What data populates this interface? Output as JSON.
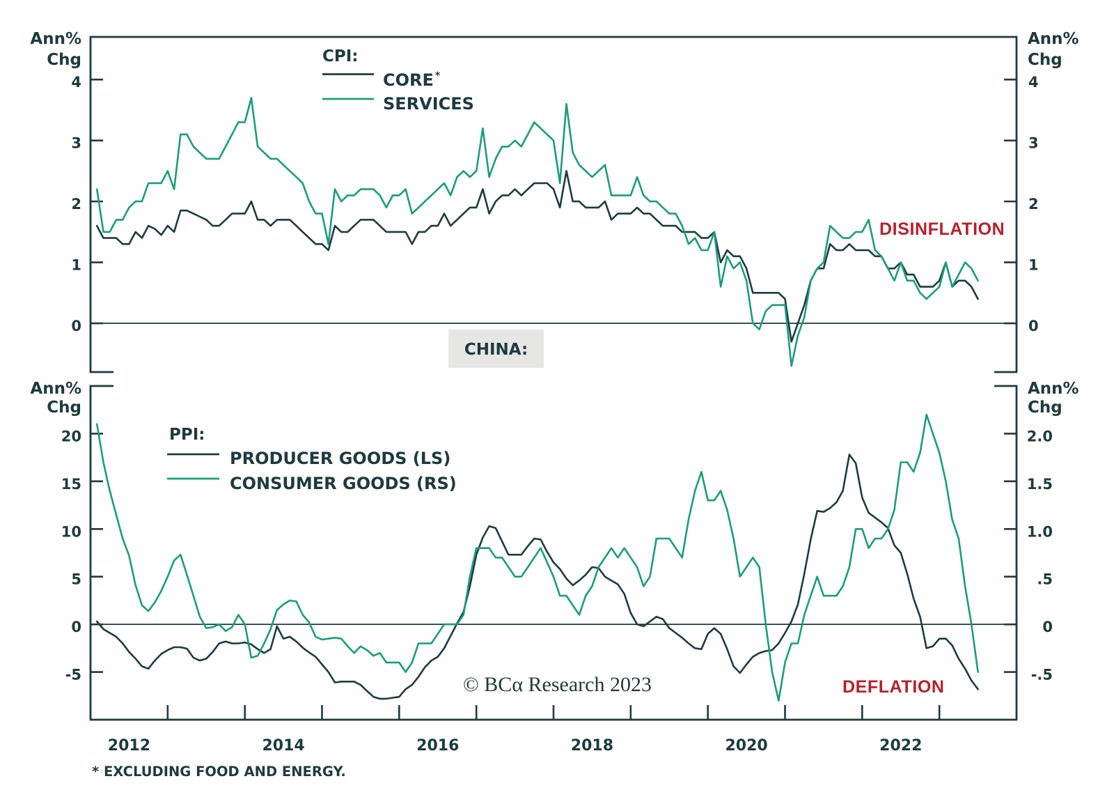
{
  "panel_label": "CHINA:",
  "copyright": "© BCα Research 2023",
  "footnote": "* EXCLUDING FOOD AND ENERGY.",
  "x_axis": {
    "range": [
      2012,
      2024
    ],
    "start": "2012-01",
    "frequency": "monthly",
    "tick_labels": [
      "2012",
      "2014",
      "2016",
      "2018",
      "2020",
      "2022"
    ]
  },
  "chart_data": [
    {
      "type": "line",
      "panel": "top",
      "title": "CHINA:",
      "legend_title": "CPI:",
      "legend_position": "top-left",
      "grid": false,
      "xlabel": "",
      "y_axis_left": {
        "title": [
          "Ann%",
          "Chg"
        ],
        "range": [
          -0.8,
          4.7
        ],
        "ticks": [
          0,
          1,
          2,
          3,
          4
        ],
        "tick_labels": [
          "0",
          "1",
          "2",
          "3",
          "4"
        ]
      },
      "y_axis_right": {
        "title": [
          "Ann%",
          "Chg"
        ],
        "range": [
          -0.8,
          4.7
        ],
        "ticks": [
          0,
          1,
          2,
          3,
          4
        ],
        "tick_labels": [
          "0",
          "1",
          "2",
          "3",
          "4"
        ]
      },
      "annotations": [
        {
          "text": "DISINFLATION",
          "color": "#b8202b",
          "position": "right"
        }
      ],
      "series": [
        {
          "id": "core",
          "name": "CORE",
          "footnote_marker": "*",
          "axis": "left",
          "color": "#1c3b40",
          "values": [
            1.6,
            1.4,
            1.4,
            1.4,
            1.3,
            1.3,
            1.5,
            1.4,
            1.6,
            1.55,
            1.45,
            1.6,
            1.5,
            1.85,
            1.85,
            1.8,
            1.75,
            1.7,
            1.6,
            1.6,
            1.7,
            1.8,
            1.8,
            1.8,
            2.0,
            1.7,
            1.7,
            1.6,
            1.7,
            1.7,
            1.7,
            1.6,
            1.5,
            1.4,
            1.3,
            1.3,
            1.2,
            1.6,
            1.5,
            1.5,
            1.6,
            1.7,
            1.7,
            1.7,
            1.6,
            1.5,
            1.5,
            1.5,
            1.5,
            1.3,
            1.5,
            1.5,
            1.6,
            1.6,
            1.8,
            1.6,
            1.7,
            1.8,
            1.9,
            1.9,
            2.2,
            1.8,
            2.0,
            2.1,
            2.1,
            2.2,
            2.1,
            2.2,
            2.3,
            2.3,
            2.3,
            2.2,
            1.9,
            2.5,
            2.0,
            2.0,
            1.9,
            1.9,
            1.9,
            2.0,
            1.7,
            1.8,
            1.8,
            1.8,
            1.9,
            1.8,
            1.8,
            1.7,
            1.6,
            1.6,
            1.6,
            1.5,
            1.5,
            1.5,
            1.4,
            1.4,
            1.5,
            1.0,
            1.2,
            1.1,
            1.1,
            0.9,
            0.5,
            0.5,
            0.5,
            0.5,
            0.5,
            0.4,
            -0.3,
            0.0,
            0.3,
            0.7,
            0.9,
            0.9,
            1.3,
            1.2,
            1.2,
            1.3,
            1.2,
            1.2,
            1.2,
            1.1,
            1.1,
            0.9,
            0.9,
            1.0,
            0.8,
            0.8,
            0.6,
            0.6,
            0.6,
            0.7,
            1.0,
            0.6,
            0.7,
            0.7,
            0.6,
            0.4
          ]
        },
        {
          "id": "services",
          "name": "SERVICES",
          "axis": "left",
          "color": "#1b9c7a",
          "values": [
            2.2,
            1.5,
            1.5,
            1.7,
            1.7,
            1.9,
            2.0,
            2.0,
            2.3,
            2.3,
            2.3,
            2.5,
            2.2,
            3.1,
            3.1,
            2.9,
            2.8,
            2.7,
            2.7,
            2.7,
            2.9,
            3.1,
            3.3,
            3.3,
            3.7,
            2.9,
            2.8,
            2.7,
            2.7,
            2.6,
            2.5,
            2.4,
            2.3,
            2.0,
            1.8,
            1.8,
            1.3,
            2.2,
            2.0,
            2.1,
            2.1,
            2.2,
            2.2,
            2.2,
            2.1,
            1.9,
            2.1,
            2.1,
            2.2,
            1.8,
            1.9,
            2.0,
            2.1,
            2.2,
            2.3,
            2.1,
            2.4,
            2.5,
            2.4,
            2.5,
            3.2,
            2.4,
            2.7,
            2.9,
            2.9,
            3.0,
            2.9,
            3.1,
            3.3,
            3.2,
            3.1,
            3.0,
            2.3,
            3.6,
            2.8,
            2.6,
            2.5,
            2.4,
            2.5,
            2.6,
            2.1,
            2.1,
            2.1,
            2.1,
            2.4,
            2.1,
            2.0,
            2.0,
            1.9,
            1.8,
            1.8,
            1.6,
            1.3,
            1.4,
            1.2,
            1.2,
            1.5,
            0.6,
            1.1,
            0.9,
            1.0,
            0.7,
            0.0,
            -0.1,
            0.2,
            0.3,
            0.3,
            0.3,
            -0.7,
            -0.2,
            0.1,
            0.7,
            0.9,
            1.0,
            1.6,
            1.5,
            1.4,
            1.4,
            1.5,
            1.5,
            1.7,
            1.2,
            1.1,
            0.9,
            0.7,
            1.0,
            0.7,
            0.7,
            0.5,
            0.4,
            0.5,
            0.6,
            1.0,
            0.6,
            0.8,
            1.0,
            0.9,
            0.7
          ]
        }
      ]
    },
    {
      "type": "line",
      "panel": "bottom",
      "legend_title": "PPI:",
      "legend_position": "top-left",
      "grid": false,
      "xlabel": "",
      "y_axis_left": {
        "title": [
          "Ann%",
          "Chg"
        ],
        "range": [
          -10,
          25
        ],
        "ticks": [
          -5,
          0,
          5,
          10,
          15,
          20
        ],
        "tick_labels": [
          "-5",
          "0",
          "5",
          "10",
          "15",
          "20"
        ]
      },
      "y_axis_right": {
        "title": [
          "Ann%",
          "Chg"
        ],
        "range": [
          -1.0,
          2.5
        ],
        "ticks": [
          -0.5,
          0,
          0.5,
          1.0,
          1.5,
          2.0
        ],
        "tick_labels": [
          "-.5",
          "0",
          ".5",
          "1.0",
          "1.5",
          "2.0"
        ]
      },
      "annotations": [
        {
          "text": "DEFLATION",
          "color": "#b8202b",
          "position": "bottom-right"
        }
      ],
      "series": [
        {
          "id": "producer-goods",
          "name": "PRODUCER GOODS (LS)",
          "axis": "left",
          "color": "#1c3b40",
          "values": [
            0.3,
            -0.5,
            -0.9,
            -1.3,
            -2.0,
            -2.9,
            -3.6,
            -4.4,
            -4.65,
            -3.8,
            -3.1,
            -2.7,
            -2.4,
            -2.4,
            -2.55,
            -3.5,
            -3.8,
            -3.6,
            -2.9,
            -2.0,
            -1.8,
            -2.0,
            -2.0,
            -1.9,
            -2.1,
            -2.6,
            -3.0,
            -2.6,
            -0.2,
            -1.5,
            -1.3,
            -1.8,
            -2.45,
            -2.95,
            -3.4,
            -4.2,
            -5.0,
            -6.1,
            -6.0,
            -6.0,
            -6.0,
            -6.35,
            -7.0,
            -7.6,
            -7.8,
            -7.8,
            -7.7,
            -7.6,
            -6.8,
            -6.35,
            -5.5,
            -4.5,
            -3.8,
            -3.4,
            -2.5,
            -1.2,
            0.1,
            1.3,
            4.0,
            7.3,
            9.1,
            10.3,
            10.1,
            8.7,
            7.3,
            7.3,
            7.3,
            8.2,
            9.0,
            8.9,
            7.6,
            6.5,
            5.8,
            4.8,
            4.1,
            4.6,
            5.2,
            6.0,
            5.9,
            5.0,
            4.6,
            4.2,
            3.2,
            1.2,
            0.0,
            -0.2,
            0.3,
            0.8,
            0.55,
            -0.4,
            -0.9,
            -1.4,
            -2.0,
            -2.5,
            -2.6,
            -1.0,
            -0.4,
            -1.0,
            -2.6,
            -4.4,
            -5.1,
            -4.2,
            -3.4,
            -3.0,
            -2.8,
            -2.7,
            -2.0,
            -0.9,
            0.3,
            2.1,
            5.3,
            8.9,
            11.9,
            11.8,
            12.2,
            12.8,
            14.0,
            17.8,
            16.9,
            13.3,
            11.7,
            11.2,
            10.7,
            10.1,
            8.3,
            7.5,
            5.3,
            2.7,
            0.8,
            -2.5,
            -2.3,
            -1.5,
            -1.5,
            -2.2,
            -3.6,
            -4.65,
            -5.9,
            -6.8
          ]
        },
        {
          "id": "consumer-goods",
          "name": "CONSUMER GOODS (RS)",
          "axis": "right",
          "color": "#1b9c7a",
          "values": [
            2.1,
            1.7,
            1.4,
            1.15,
            0.9,
            0.72,
            0.41,
            0.2,
            0.14,
            0.23,
            0.35,
            0.5,
            0.67,
            0.73,
            0.52,
            0.3,
            0.08,
            -0.04,
            -0.03,
            0.0,
            -0.07,
            -0.03,
            0.1,
            0.0,
            -0.35,
            -0.33,
            -0.2,
            -0.05,
            0.15,
            0.21,
            0.25,
            0.24,
            0.1,
            0.02,
            -0.13,
            -0.16,
            -0.15,
            -0.14,
            -0.15,
            -0.23,
            -0.3,
            -0.23,
            -0.27,
            -0.33,
            -0.3,
            -0.4,
            -0.4,
            -0.4,
            -0.5,
            -0.4,
            -0.2,
            -0.2,
            -0.2,
            -0.1,
            0.0,
            0.0,
            0.0,
            0.1,
            0.5,
            0.8,
            0.8,
            0.8,
            0.7,
            0.7,
            0.6,
            0.5,
            0.5,
            0.6,
            0.7,
            0.8,
            0.65,
            0.5,
            0.3,
            0.3,
            0.2,
            0.1,
            0.3,
            0.4,
            0.6,
            0.7,
            0.8,
            0.7,
            0.8,
            0.7,
            0.6,
            0.4,
            0.5,
            0.9,
            0.9,
            0.9,
            0.8,
            0.7,
            1.1,
            1.4,
            1.6,
            1.3,
            1.3,
            1.4,
            1.2,
            0.9,
            0.5,
            0.6,
            0.7,
            0.6,
            0.0,
            -0.5,
            -0.8,
            -0.4,
            -0.2,
            -0.2,
            0.1,
            0.3,
            0.5,
            0.3,
            0.3,
            0.3,
            0.4,
            0.6,
            1.0,
            1.0,
            0.8,
            0.9,
            0.9,
            1.0,
            1.2,
            1.7,
            1.7,
            1.6,
            1.8,
            2.2,
            2.0,
            1.8,
            1.5,
            1.1,
            0.9,
            0.4,
            0.0,
            -0.5
          ]
        }
      ]
    }
  ]
}
